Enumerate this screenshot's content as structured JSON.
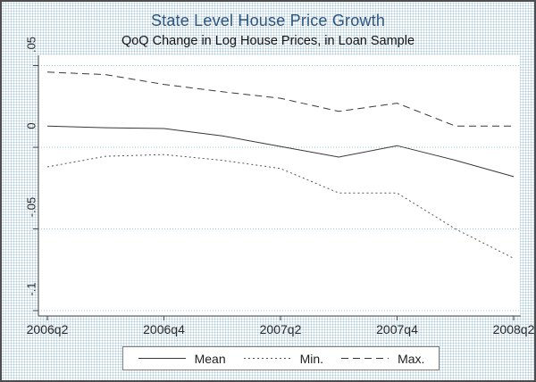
{
  "title": "State Level House Price Growth",
  "subtitle": "QoQ Change in Log House Prices, in Loan Sample",
  "colors": {
    "title_text": "#2e5580",
    "subtitle_text": "#141414",
    "background_dots": "#aecbdf",
    "plot_bg": "#ffffff",
    "grid": "#93ced6",
    "axis": "#4a4a4a",
    "tick_text": "#2b2b2b",
    "outer_border": "#4d4d4d",
    "legend_border": "#7d7d7d"
  },
  "chart_data": {
    "type": "line",
    "title": "State Level House Price Growth",
    "subtitle": "QoQ Change in Log House Prices, in Loan Sample",
    "categories": [
      "2006q2",
      "2006q3",
      "2006q4",
      "2007q1",
      "2007q2",
      "2007q3",
      "2007q4",
      "2008q1",
      "2008q2"
    ],
    "x_tick_labels": [
      "2006q2",
      "2006q4",
      "2007q2",
      "2007q4",
      "2008q2"
    ],
    "x_tick_indices": [
      0,
      2,
      4,
      6,
      8
    ],
    "y_ticks": [
      0.05,
      0,
      -0.05,
      -0.1
    ],
    "y_tick_labels": [
      ".05",
      "0",
      "-.05",
      "-.1"
    ],
    "ylim": [
      -0.1033,
      0.0563
    ],
    "xlabel": "",
    "ylabel": "",
    "grid": "horizontal-dotted",
    "legend_position": "bottom-center",
    "series": [
      {
        "name": "Mean",
        "style": "solid",
        "color": "#383838",
        "values": [
          0.013,
          0.012,
          0.0115,
          0.007,
          0.0005,
          -0.006,
          0.001,
          -0.008,
          -0.018
        ]
      },
      {
        "name": "Min.",
        "style": "dotted",
        "color": "#555555",
        "values": [
          -0.012,
          -0.0055,
          -0.0045,
          -0.008,
          -0.013,
          -0.028,
          -0.028,
          -0.05,
          -0.068
        ]
      },
      {
        "name": "Max.",
        "style": "dashed",
        "color": "#383838",
        "values": [
          0.046,
          0.0445,
          0.0385,
          0.034,
          0.03,
          0.022,
          0.027,
          0.013,
          0.013
        ]
      }
    ]
  },
  "legend": {
    "items": [
      {
        "label": "Mean",
        "style": "solid"
      },
      {
        "label": "Min.",
        "style": "dotted"
      },
      {
        "label": "Max.",
        "style": "dashed"
      }
    ]
  }
}
